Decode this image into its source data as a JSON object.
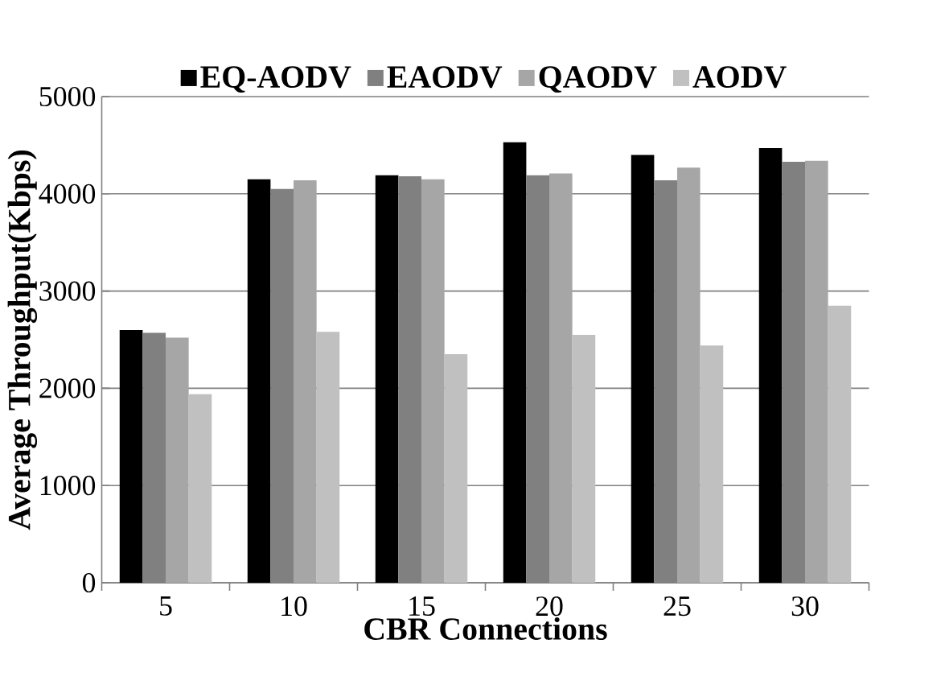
{
  "chart_data": {
    "type": "bar",
    "xlabel": "CBR Connections",
    "ylabel": "Average Throughput(Kbps)",
    "categories": [
      "5",
      "10",
      "15",
      "20",
      "25",
      "30"
    ],
    "series": [
      {
        "name": "EQ-AODV",
        "color": "#000000",
        "values": [
          2600,
          4150,
          4190,
          4530,
          4400,
          4470
        ]
      },
      {
        "name": "EAODV",
        "color": "#808080",
        "values": [
          2570,
          4050,
          4180,
          4190,
          4140,
          4330
        ]
      },
      {
        "name": "QAODV",
        "color": "#a6a6a6",
        "values": [
          2520,
          4140,
          4150,
          4210,
          4270,
          4340
        ]
      },
      {
        "name": "AODV",
        "color": "#c0c0c0",
        "values": [
          1940,
          2580,
          2350,
          2550,
          2440,
          2850
        ]
      }
    ],
    "ylim": [
      0,
      5000
    ],
    "yticks": [
      0,
      1000,
      2000,
      3000,
      4000,
      5000
    ],
    "grid": "y",
    "legend": "top"
  }
}
